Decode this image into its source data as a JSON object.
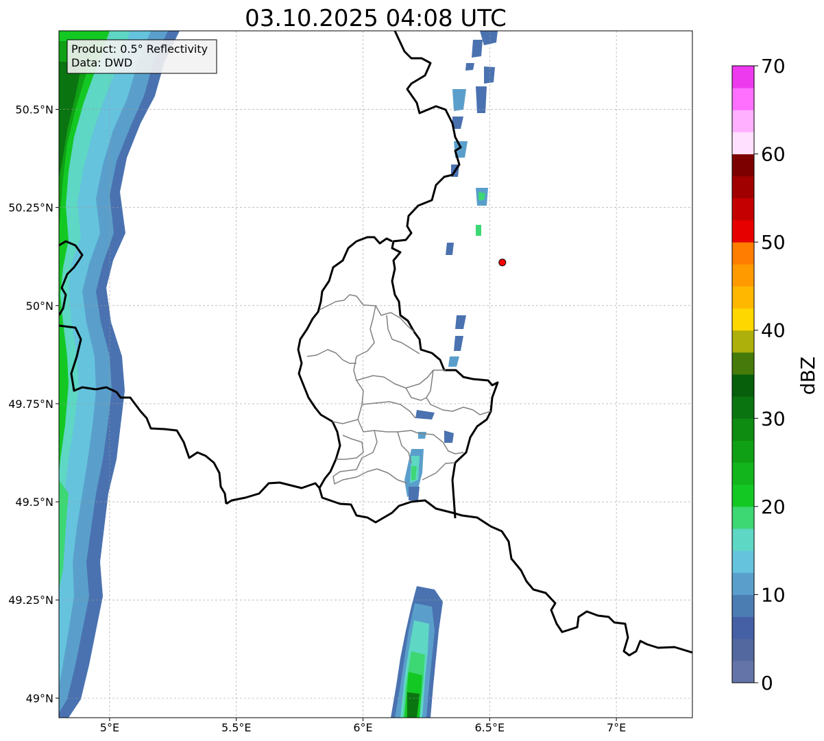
{
  "title": "03.10.2025 04:08 UTC",
  "info": {
    "product": "Product: 0.5° Reflectivity",
    "source": "Data: DWD"
  },
  "map": {
    "lon_range": [
      4.8,
      7.3
    ],
    "lat_range": [
      48.95,
      50.7
    ],
    "x_ticks": [
      {
        "value": 5.0,
        "label": "5°E"
      },
      {
        "value": 5.5,
        "label": "5.5°E"
      },
      {
        "value": 6.0,
        "label": "6°E"
      },
      {
        "value": 6.5,
        "label": "6.5°E"
      },
      {
        "value": 7.0,
        "label": "7°E"
      }
    ],
    "y_ticks": [
      {
        "value": 50.5,
        "label": "50.5°N"
      },
      {
        "value": 50.25,
        "label": "50.25°N"
      },
      {
        "value": 50.0,
        "label": "50°N"
      },
      {
        "value": 49.75,
        "label": "49.75°N"
      },
      {
        "value": 49.5,
        "label": "49.5°N"
      },
      {
        "value": 49.25,
        "label": "49.25°N"
      },
      {
        "value": 49.0,
        "label": "49°N"
      }
    ],
    "grid": true,
    "marker": {
      "lon": 6.55,
      "lat": 50.11,
      "color": "#ff0000"
    }
  },
  "colorbar": {
    "label": "dBZ",
    "range": [
      0,
      70
    ],
    "ticks": [
      {
        "value": 0,
        "label": "0"
      },
      {
        "value": 10,
        "label": "10"
      },
      {
        "value": 20,
        "label": "20"
      },
      {
        "value": 30,
        "label": "30"
      },
      {
        "value": 40,
        "label": "40"
      },
      {
        "value": 50,
        "label": "50"
      },
      {
        "value": 60,
        "label": "60"
      },
      {
        "value": 70,
        "label": "70"
      }
    ],
    "colors": [
      "#6574a8",
      "#53689e",
      "#4560a4",
      "#4b7db3",
      "#5a9fcb",
      "#65c3de",
      "#5ed7c4",
      "#3dd774",
      "#14c824",
      "#12b61c",
      "#10a015",
      "#0e8c12",
      "#0a7510",
      "#075f0c",
      "#467a0a",
      "#adb00a",
      "#ffd700",
      "#ffb700",
      "#ff9b00",
      "#ff7d00",
      "#e60000",
      "#c50000",
      "#a00000",
      "#7d0000",
      "#ffe0ff",
      "#ffb0ff",
      "#ff70ff",
      "#ee3aee"
    ]
  }
}
